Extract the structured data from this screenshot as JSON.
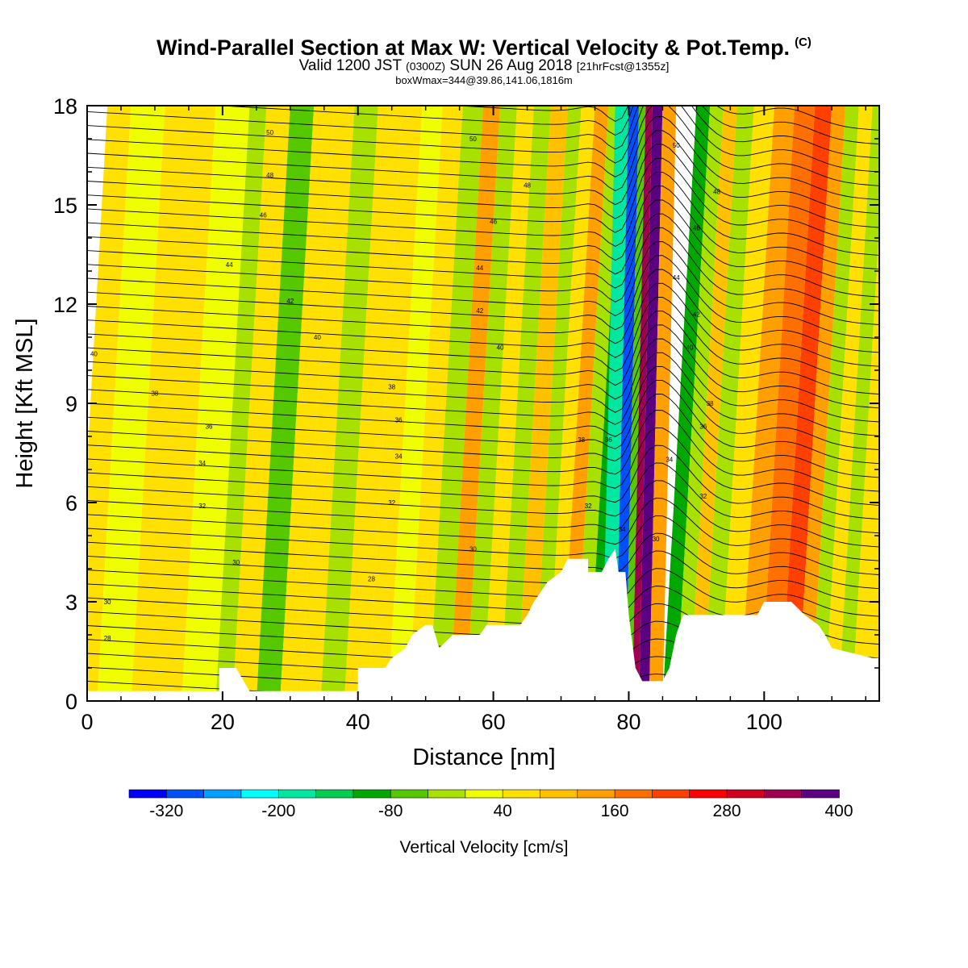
{
  "chart_data": {
    "type": "heatmap",
    "title": "Wind-Parallel Section at Max W: Vertical Velocity & Pot.Temp.",
    "title_mark": "(C)",
    "subtitle_parts": [
      "Valid 1200 JST",
      "(0300Z)",
      "SUN 26 Aug 2018",
      "[21hrFcst@1355z]"
    ],
    "subtitle2": "boxWmax=344@39.86,141.06,1816m",
    "xlabel": "Distance [nm]",
    "ylabel": "Height [Kft MSL]",
    "xlim": [
      0,
      117
    ],
    "ylim": [
      0,
      18
    ],
    "x_ticks": [
      "0",
      "20",
      "40",
      "60",
      "80",
      "100"
    ],
    "y_ticks": [
      "0",
      "3",
      "6",
      "9",
      "12",
      "15",
      "18"
    ],
    "colorbar_label": "Vertical Velocity [cm/s]",
    "colorbar_tick_labels": [
      "-320",
      "-200",
      "-80",
      "40",
      "160",
      "280",
      "400"
    ],
    "colorbar_colors": [
      "#0000ff",
      "#0050ff",
      "#00a0ff",
      "#00ffff",
      "#00e8a0",
      "#00cc50",
      "#00a800",
      "#56c800",
      "#a8e000",
      "#f0ff00",
      "#ffe000",
      "#ffc000",
      "#ffa000",
      "#ff7000",
      "#ff4000",
      "#ff0000",
      "#d00020",
      "#a00050",
      "#5a0080"
    ],
    "velocity_columns": [
      {
        "x": 0,
        "w": 40
      },
      {
        "x": 3,
        "w": -20
      },
      {
        "x": 10,
        "w": 30
      },
      {
        "x": 18,
        "w": 0
      },
      {
        "x": 20,
        "w": -40
      },
      {
        "x": 23,
        "w": 40
      },
      {
        "x": 27,
        "w": -80
      },
      {
        "x": 30,
        "w": 20
      },
      {
        "x": 33,
        "w": 40
      },
      {
        "x": 36,
        "w": -40
      },
      {
        "x": 40,
        "w": 20
      },
      {
        "x": 43,
        "w": 40
      },
      {
        "x": 46,
        "w": -20
      },
      {
        "x": 49,
        "w": 40
      },
      {
        "x": 52,
        "w": -60
      },
      {
        "x": 55,
        "w": 110
      },
      {
        "x": 57,
        "w": -30
      },
      {
        "x": 60,
        "w": 40
      },
      {
        "x": 62,
        "w": -40
      },
      {
        "x": 65,
        "w": 70
      },
      {
        "x": 67,
        "w": -40
      },
      {
        "x": 69,
        "w": 40
      },
      {
        "x": 71,
        "w": 100
      },
      {
        "x": 73,
        "w": -40
      },
      {
        "x": 75,
        "w": -120
      },
      {
        "x": 77,
        "w": -200
      },
      {
        "x": 79,
        "w": -340
      },
      {
        "x": 80,
        "w": -100
      },
      {
        "x": 81,
        "w": 300
      },
      {
        "x": 82,
        "w": 430
      },
      {
        "x": 84,
        "w": 120
      },
      {
        "x": 86,
        "w": -120
      },
      {
        "x": 88,
        "w": -40
      },
      {
        "x": 90,
        "w": 60
      },
      {
        "x": 92,
        "w": -40
      },
      {
        "x": 95,
        "w": 40
      },
      {
        "x": 98,
        "w": 100
      },
      {
        "x": 101,
        "w": 150
      },
      {
        "x": 104,
        "w": 180
      },
      {
        "x": 106,
        "w": 130
      },
      {
        "x": 108,
        "w": -40
      },
      {
        "x": 110,
        "w": 40
      },
      {
        "x": 112,
        "w": -30
      },
      {
        "x": 114,
        "w": 40
      },
      {
        "x": 117,
        "w": 20
      }
    ],
    "terrain_kft": [
      {
        "x": 0,
        "h": 0.3
      },
      {
        "x": 19.5,
        "h": 0.3
      },
      {
        "x": 19.5,
        "h": 1.0
      },
      {
        "x": 22,
        "h": 1.0
      },
      {
        "x": 24,
        "h": 0.3
      },
      {
        "x": 40,
        "h": 0.3
      },
      {
        "x": 40,
        "h": 1.0
      },
      {
        "x": 44,
        "h": 1.0
      },
      {
        "x": 45,
        "h": 1.3
      },
      {
        "x": 47,
        "h": 1.6
      },
      {
        "x": 48,
        "h": 2.0
      },
      {
        "x": 50,
        "h": 2.3
      },
      {
        "x": 51,
        "h": 2.3
      },
      {
        "x": 52,
        "h": 1.6
      },
      {
        "x": 54,
        "h": 2.0
      },
      {
        "x": 58,
        "h": 2.0
      },
      {
        "x": 59,
        "h": 2.3
      },
      {
        "x": 64,
        "h": 2.3
      },
      {
        "x": 65,
        "h": 2.6
      },
      {
        "x": 66,
        "h": 3.0
      },
      {
        "x": 67,
        "h": 3.3
      },
      {
        "x": 68,
        "h": 3.6
      },
      {
        "x": 70,
        "h": 3.9
      },
      {
        "x": 71,
        "h": 4.3
      },
      {
        "x": 74,
        "h": 4.3
      },
      {
        "x": 74,
        "h": 3.9
      },
      {
        "x": 76,
        "h": 3.9
      },
      {
        "x": 77,
        "h": 4.3
      },
      {
        "x": 78,
        "h": 4.6
      },
      {
        "x": 78.5,
        "h": 3.9
      },
      {
        "x": 79.5,
        "h": 3.9
      },
      {
        "x": 80,
        "h": 2.6
      },
      {
        "x": 81,
        "h": 1.0
      },
      {
        "x": 82,
        "h": 0.6
      },
      {
        "x": 85,
        "h": 0.6
      },
      {
        "x": 86,
        "h": 1.0
      },
      {
        "x": 87,
        "h": 2.0
      },
      {
        "x": 88,
        "h": 2.6
      },
      {
        "x": 99,
        "h": 2.6
      },
      {
        "x": 100,
        "h": 3.0
      },
      {
        "x": 104,
        "h": 3.0
      },
      {
        "x": 106,
        "h": 2.6
      },
      {
        "x": 108,
        "h": 2.3
      },
      {
        "x": 109,
        "h": 2.0
      },
      {
        "x": 110,
        "h": 1.6
      },
      {
        "x": 116,
        "h": 1.3
      },
      {
        "x": 117,
        "h": 1.3
      }
    ],
    "isentrope_labels": [
      {
        "x": 1,
        "y": 10.5,
        "text": "40"
      },
      {
        "x": 10,
        "y": 9.3,
        "text": "38"
      },
      {
        "x": 18,
        "y": 8.3,
        "text": "36"
      },
      {
        "x": 17,
        "y": 7.2,
        "text": "34"
      },
      {
        "x": 17,
        "y": 5.9,
        "text": "32"
      },
      {
        "x": 22,
        "y": 4.2,
        "text": "30"
      },
      {
        "x": 3,
        "y": 3.0,
        "text": "30"
      },
      {
        "x": 3,
        "y": 1.9,
        "text": "28"
      },
      {
        "x": 27,
        "y": 17.2,
        "text": "50"
      },
      {
        "x": 27,
        "y": 15.9,
        "text": "48"
      },
      {
        "x": 26,
        "y": 14.7,
        "text": "46"
      },
      {
        "x": 21,
        "y": 13.2,
        "text": "44"
      },
      {
        "x": 30,
        "y": 12.1,
        "text": "42"
      },
      {
        "x": 34,
        "y": 11.0,
        "text": "40"
      },
      {
        "x": 45,
        "y": 9.5,
        "text": "38"
      },
      {
        "x": 46,
        "y": 8.5,
        "text": "36"
      },
      {
        "x": 46,
        "y": 7.4,
        "text": "34"
      },
      {
        "x": 45,
        "y": 6.0,
        "text": "32"
      },
      {
        "x": 42,
        "y": 3.7,
        "text": "28"
      },
      {
        "x": 57,
        "y": 4.6,
        "text": "30"
      },
      {
        "x": 57,
        "y": 17.0,
        "text": "50"
      },
      {
        "x": 65,
        "y": 15.6,
        "text": "48"
      },
      {
        "x": 60,
        "y": 14.5,
        "text": "46"
      },
      {
        "x": 58,
        "y": 13.1,
        "text": "44"
      },
      {
        "x": 58,
        "y": 11.8,
        "text": "42"
      },
      {
        "x": 61,
        "y": 10.7,
        "text": "40"
      },
      {
        "x": 73,
        "y": 7.9,
        "text": "38"
      },
      {
        "x": 77,
        "y": 7.9,
        "text": "36"
      },
      {
        "x": 74,
        "y": 5.9,
        "text": "32"
      },
      {
        "x": 79,
        "y": 5.2,
        "text": "34"
      },
      {
        "x": 87,
        "y": 16.8,
        "text": "50"
      },
      {
        "x": 93,
        "y": 15.4,
        "text": "48"
      },
      {
        "x": 90,
        "y": 14.3,
        "text": "46"
      },
      {
        "x": 87,
        "y": 12.8,
        "text": "44"
      },
      {
        "x": 90,
        "y": 11.7,
        "text": "42"
      },
      {
        "x": 89,
        "y": 10.7,
        "text": "40"
      },
      {
        "x": 92,
        "y": 9.0,
        "text": "38"
      },
      {
        "x": 91,
        "y": 8.3,
        "text": "36"
      },
      {
        "x": 86,
        "y": 7.3,
        "text": "34"
      },
      {
        "x": 91,
        "y": 6.2,
        "text": "32"
      },
      {
        "x": 84,
        "y": 4.9,
        "text": "30"
      }
    ]
  }
}
